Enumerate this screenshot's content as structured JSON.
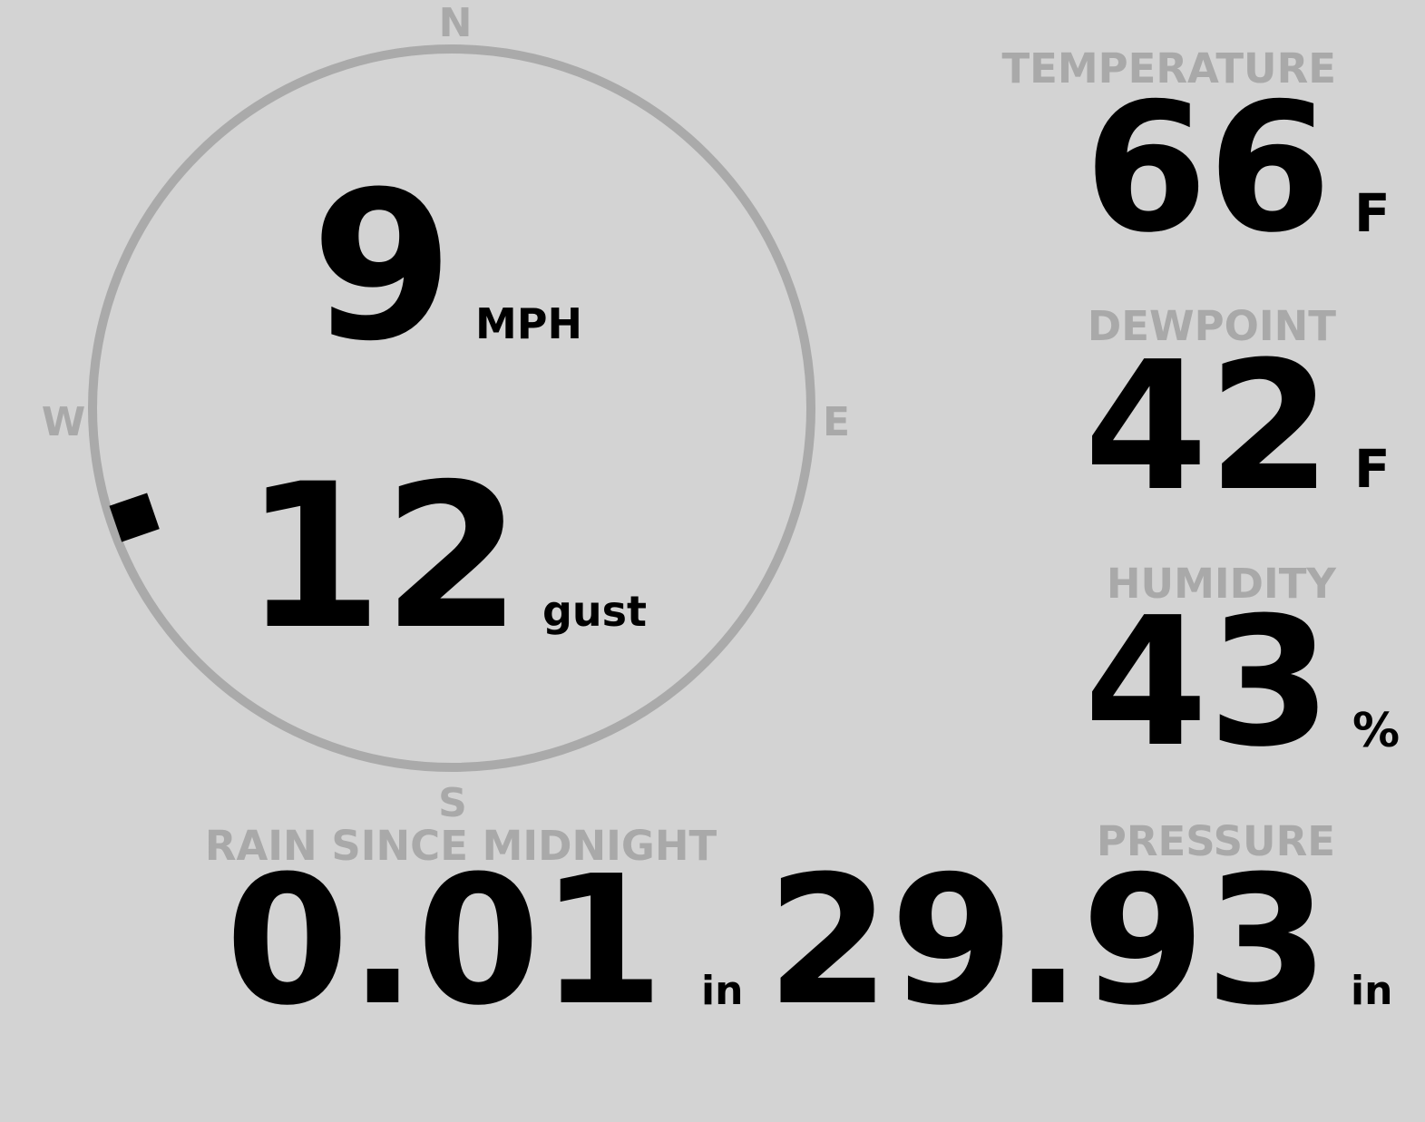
{
  "colors": {
    "background": "#d3d3d3",
    "label": "#a9a9a9",
    "value": "#000000",
    "ring": "#aaaaaa"
  },
  "compass": {
    "north": "N",
    "south": "S",
    "east": "E",
    "west": "W",
    "wind_direction_deg": 251,
    "wind_speed": "9",
    "wind_speed_unit": "MPH",
    "gust": "12",
    "gust_unit": "gust"
  },
  "temperature": {
    "label": "TEMPERATURE",
    "value": "66",
    "unit": "F"
  },
  "dewpoint": {
    "label": "DEWPOINT",
    "value": "42",
    "unit": "F"
  },
  "humidity": {
    "label": "HUMIDITY",
    "value": "43",
    "unit": "%"
  },
  "pressure": {
    "label": "PRESSURE",
    "value": "29.93",
    "unit": "in"
  },
  "rain": {
    "label": "RAIN SINCE MIDNIGHT",
    "value": "0.01",
    "unit": "in"
  }
}
